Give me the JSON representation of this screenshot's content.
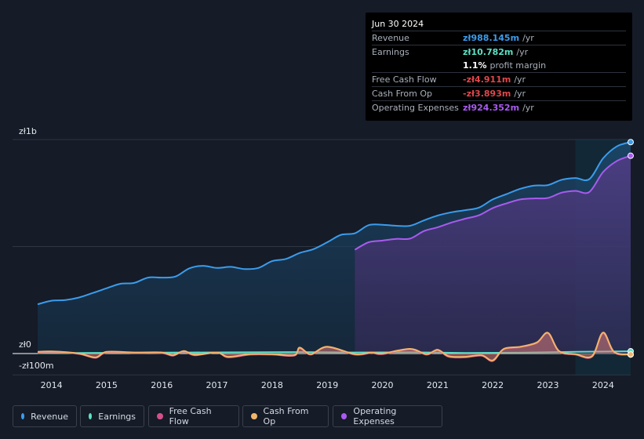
{
  "tooltip": {
    "date": "Jun 30 2024",
    "rows": [
      {
        "label": "Revenue",
        "value": "zł988.145m",
        "suffix": "/yr",
        "color": "#3b9cec"
      },
      {
        "label": "Earnings",
        "value": "zł10.782m",
        "suffix": "/yr",
        "color": "#5ee0c6"
      },
      {
        "label": "",
        "value": "1.1%",
        "suffix": "profit margin",
        "color": "#ffffff"
      },
      {
        "label": "Free Cash Flow",
        "value": "-zł4.911m",
        "suffix": "/yr",
        "color": "#e0474c"
      },
      {
        "label": "Cash From Op",
        "value": "-zł3.893m",
        "suffix": "/yr",
        "color": "#e0474c"
      },
      {
        "label": "Operating Expenses",
        "value": "zł924.352m",
        "suffix": "/yr",
        "color": "#a95af0"
      }
    ]
  },
  "chart_data": {
    "type": "area",
    "y_tick_labels": [
      "zł1b",
      "zł0",
      "-zł100m"
    ],
    "ylim": [
      -100,
      1000
    ],
    "x_tick_labels": [
      "2014",
      "2015",
      "2016",
      "2017",
      "2018",
      "2019",
      "2020",
      "2021",
      "2022",
      "2023",
      "2024"
    ],
    "xlim": [
      2013.75,
      2024.5
    ],
    "forecast_start": 2023.5,
    "grid": true,
    "legend_position": "bottom",
    "series": [
      {
        "name": "Revenue",
        "color": "#3b9cec",
        "fill": true,
        "points": [
          [
            2013.75,
            230
          ],
          [
            2014,
            247
          ],
          [
            2014.25,
            250
          ],
          [
            2014.5,
            262
          ],
          [
            2014.75,
            283
          ],
          [
            2015,
            305
          ],
          [
            2015.25,
            326
          ],
          [
            2015.5,
            330
          ],
          [
            2015.75,
            355
          ],
          [
            2016,
            355
          ],
          [
            2016.25,
            360
          ],
          [
            2016.5,
            398
          ],
          [
            2016.75,
            410
          ],
          [
            2017,
            400
          ],
          [
            2017.25,
            405
          ],
          [
            2017.5,
            395
          ],
          [
            2017.75,
            400
          ],
          [
            2018,
            432
          ],
          [
            2018.25,
            442
          ],
          [
            2018.5,
            470
          ],
          [
            2018.75,
            488
          ],
          [
            2019,
            520
          ],
          [
            2019.25,
            555
          ],
          [
            2019.5,
            562
          ],
          [
            2019.75,
            600
          ],
          [
            2020,
            602
          ],
          [
            2020.25,
            597
          ],
          [
            2020.5,
            597
          ],
          [
            2020.75,
            622
          ],
          [
            2021,
            645
          ],
          [
            2021.25,
            660
          ],
          [
            2021.5,
            670
          ],
          [
            2021.75,
            682
          ],
          [
            2022,
            720
          ],
          [
            2022.25,
            745
          ],
          [
            2022.5,
            770
          ],
          [
            2022.75,
            785
          ],
          [
            2023,
            787
          ],
          [
            2023.25,
            812
          ],
          [
            2023.5,
            820
          ],
          [
            2023.75,
            815
          ],
          [
            2024,
            912
          ],
          [
            2024.25,
            968
          ],
          [
            2024.5,
            988.145
          ]
        ]
      },
      {
        "name": "Operating Expenses",
        "color": "#a95af0",
        "fill": true,
        "points": [
          [
            2019.5,
            485
          ],
          [
            2019.75,
            520
          ],
          [
            2020,
            528
          ],
          [
            2020.25,
            536
          ],
          [
            2020.5,
            537
          ],
          [
            2020.75,
            572
          ],
          [
            2021,
            590
          ],
          [
            2021.25,
            612
          ],
          [
            2021.5,
            630
          ],
          [
            2021.75,
            646
          ],
          [
            2022,
            680
          ],
          [
            2022.25,
            702
          ],
          [
            2022.5,
            720
          ],
          [
            2022.75,
            725
          ],
          [
            2023,
            727
          ],
          [
            2023.25,
            752
          ],
          [
            2023.5,
            760
          ],
          [
            2023.75,
            755
          ],
          [
            2024,
            848
          ],
          [
            2024.25,
            900
          ],
          [
            2024.5,
            924.352
          ]
        ]
      },
      {
        "name": "Earnings",
        "color": "#5ee0c6",
        "fill": false,
        "points": [
          [
            2013.75,
            2
          ],
          [
            2014.5,
            3
          ],
          [
            2015.5,
            4
          ],
          [
            2016.5,
            5
          ],
          [
            2017.5,
            6
          ],
          [
            2018.5,
            7
          ],
          [
            2019.5,
            5
          ],
          [
            2020.5,
            6
          ],
          [
            2021.5,
            3
          ],
          [
            2022.5,
            4
          ],
          [
            2023.5,
            8
          ],
          [
            2024.5,
            10.782
          ]
        ]
      },
      {
        "name": "Free Cash Flow",
        "color": "#d4508a",
        "fill": true,
        "points": [
          [
            2013.75,
            5
          ],
          [
            2014,
            8
          ],
          [
            2014.5,
            -2
          ],
          [
            2014.8,
            -20
          ],
          [
            2015,
            5
          ],
          [
            2015.5,
            3
          ],
          [
            2016,
            2
          ],
          [
            2016.2,
            -10
          ],
          [
            2016.4,
            10
          ],
          [
            2016.6,
            -8
          ],
          [
            2017,
            5
          ],
          [
            2017.2,
            -18
          ],
          [
            2017.6,
            -5
          ],
          [
            2018,
            -5
          ],
          [
            2018.4,
            -10
          ],
          [
            2018.5,
            25
          ],
          [
            2018.7,
            -5
          ],
          [
            2019,
            30
          ],
          [
            2019.5,
            -5
          ],
          [
            2019.8,
            3
          ],
          [
            2020,
            -3
          ],
          [
            2020.5,
            20
          ],
          [
            2020.8,
            -5
          ],
          [
            2021,
            15
          ],
          [
            2021.2,
            -15
          ],
          [
            2021.5,
            -18
          ],
          [
            2021.8,
            -10
          ],
          [
            2022,
            -35
          ],
          [
            2022.2,
            20
          ],
          [
            2022.5,
            30
          ],
          [
            2022.8,
            50
          ],
          [
            2023,
            95
          ],
          [
            2023.2,
            10
          ],
          [
            2023.5,
            -5
          ],
          [
            2023.8,
            -15
          ],
          [
            2024,
            95
          ],
          [
            2024.2,
            5
          ],
          [
            2024.5,
            -4.911
          ]
        ]
      },
      {
        "name": "Cash From Op",
        "color": "#f2b46c",
        "fill": true,
        "points": [
          [
            2013.75,
            8
          ],
          [
            2014,
            10
          ],
          [
            2014.5,
            0
          ],
          [
            2014.8,
            -18
          ],
          [
            2015,
            8
          ],
          [
            2015.5,
            5
          ],
          [
            2016,
            5
          ],
          [
            2016.2,
            -8
          ],
          [
            2016.4,
            12
          ],
          [
            2016.6,
            -6
          ],
          [
            2017,
            5
          ],
          [
            2017.2,
            -15
          ],
          [
            2017.6,
            -3
          ],
          [
            2018,
            -3
          ],
          [
            2018.4,
            -8
          ],
          [
            2018.5,
            28
          ],
          [
            2018.7,
            -3
          ],
          [
            2019,
            32
          ],
          [
            2019.5,
            -3
          ],
          [
            2019.8,
            5
          ],
          [
            2020,
            0
          ],
          [
            2020.5,
            22
          ],
          [
            2020.8,
            -3
          ],
          [
            2021,
            18
          ],
          [
            2021.2,
            -12
          ],
          [
            2021.5,
            -15
          ],
          [
            2021.8,
            -8
          ],
          [
            2022,
            -32
          ],
          [
            2022.2,
            22
          ],
          [
            2022.5,
            32
          ],
          [
            2022.8,
            52
          ],
          [
            2023,
            97
          ],
          [
            2023.2,
            12
          ],
          [
            2023.5,
            -3
          ],
          [
            2023.8,
            -12
          ],
          [
            2024,
            98
          ],
          [
            2024.2,
            8
          ],
          [
            2024.5,
            -3.893
          ]
        ]
      }
    ]
  },
  "legend": [
    {
      "label": "Revenue",
      "color": "#3b9cec"
    },
    {
      "label": "Earnings",
      "color": "#5ee0c6"
    },
    {
      "label": "Free Cash Flow",
      "color": "#d4508a"
    },
    {
      "label": "Cash From Op",
      "color": "#f2b46c"
    },
    {
      "label": "Operating Expenses",
      "color": "#a95af0"
    }
  ]
}
